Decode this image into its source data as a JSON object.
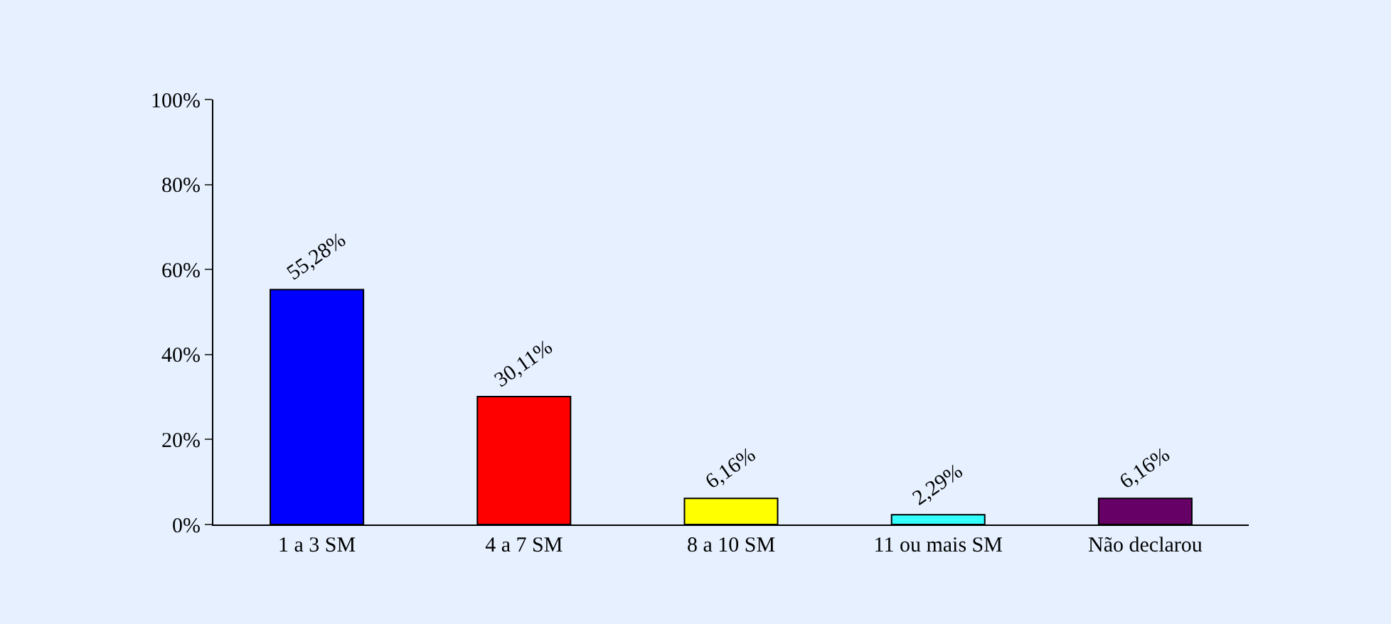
{
  "chart_data": {
    "type": "bar",
    "categories": [
      "1 a 3 SM",
      "4 a 7 SM",
      "8 a 10 SM",
      "11 ou mais SM",
      "Não declarou"
    ],
    "values": [
      55.28,
      30.11,
      6.16,
      2.29,
      6.16
    ],
    "colors": [
      "#0000ff",
      "#ff0000",
      "#ffff00",
      "#33ffff",
      "#660066"
    ],
    "value_labels": [
      "55,28%",
      "30,11%",
      "6,16%",
      "2,29%",
      "6,16%"
    ],
    "ylim": [
      0,
      100
    ],
    "yticks": [
      {
        "value": 0,
        "label": "0%"
      },
      {
        "value": 20,
        "label": "20%"
      },
      {
        "value": 40,
        "label": "40%"
      },
      {
        "value": 60,
        "label": "60%"
      },
      {
        "value": 80,
        "label": "80%"
      },
      {
        "value": 100,
        "label": "100%"
      }
    ],
    "grid": false,
    "legend": false
  }
}
